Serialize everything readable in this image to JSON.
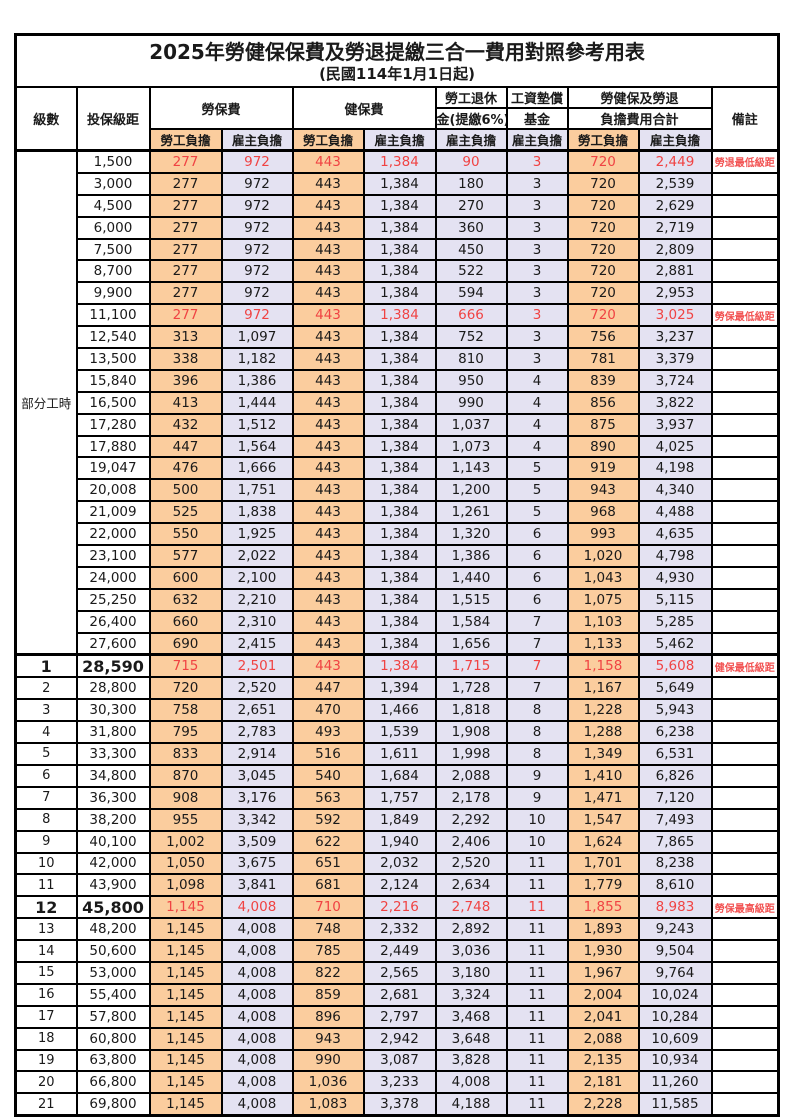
{
  "title": {
    "main": "2025年勞健保保費及勞退提繳三合一費用對照參考用表",
    "sub": "(民國114年1月1日起)"
  },
  "colors": {
    "employee_bg": "#fbcd9e",
    "employer_bg": "#e4e2f2",
    "highlight_red": "#f04343",
    "border": "#000000"
  },
  "header": {
    "level": "級數",
    "bracket": "投保級距",
    "labor": "勞保費",
    "health": "健保費",
    "pension_line1": "勞工退休",
    "pension_line2": "金(提繳6%)",
    "fund_line1": "工資墊償",
    "fund_line2": "基金",
    "total_line1": "勞健保及勞退",
    "total_line2": "負擔費用合計",
    "remark": "備註",
    "employee": "勞工負擔",
    "employer": "雇主負擔"
  },
  "table": {
    "part_time_label": "部分工時",
    "part_time_row_count": 23,
    "rows": [
      {
        "cells": [
          "",
          "1,500",
          "277",
          "972",
          "443",
          "1,384",
          "90",
          "3",
          "720",
          "2,449",
          "勞退最低級距"
        ],
        "red": true
      },
      {
        "cells": [
          "",
          "3,000",
          "277",
          "972",
          "443",
          "1,384",
          "180",
          "3",
          "720",
          "2,539",
          ""
        ]
      },
      {
        "cells": [
          "",
          "4,500",
          "277",
          "972",
          "443",
          "1,384",
          "270",
          "3",
          "720",
          "2,629",
          ""
        ]
      },
      {
        "cells": [
          "",
          "6,000",
          "277",
          "972",
          "443",
          "1,384",
          "360",
          "3",
          "720",
          "2,719",
          ""
        ]
      },
      {
        "cells": [
          "",
          "7,500",
          "277",
          "972",
          "443",
          "1,384",
          "450",
          "3",
          "720",
          "2,809",
          ""
        ]
      },
      {
        "cells": [
          "",
          "8,700",
          "277",
          "972",
          "443",
          "1,384",
          "522",
          "3",
          "720",
          "2,881",
          ""
        ]
      },
      {
        "cells": [
          "",
          "9,900",
          "277",
          "972",
          "443",
          "1,384",
          "594",
          "3",
          "720",
          "2,953",
          ""
        ]
      },
      {
        "cells": [
          "",
          "11,100",
          "277",
          "972",
          "443",
          "1,384",
          "666",
          "3",
          "720",
          "3,025",
          "勞保最低級距"
        ],
        "red": true
      },
      {
        "cells": [
          "",
          "12,540",
          "313",
          "1,097",
          "443",
          "1,384",
          "752",
          "3",
          "756",
          "3,237",
          ""
        ]
      },
      {
        "cells": [
          "",
          "13,500",
          "338",
          "1,182",
          "443",
          "1,384",
          "810",
          "3",
          "781",
          "3,379",
          ""
        ]
      },
      {
        "cells": [
          "",
          "15,840",
          "396",
          "1,386",
          "443",
          "1,384",
          "950",
          "4",
          "839",
          "3,724",
          ""
        ]
      },
      {
        "cells": [
          "",
          "16,500",
          "413",
          "1,444",
          "443",
          "1,384",
          "990",
          "4",
          "856",
          "3,822",
          ""
        ]
      },
      {
        "cells": [
          "",
          "17,280",
          "432",
          "1,512",
          "443",
          "1,384",
          "1,037",
          "4",
          "875",
          "3,937",
          ""
        ]
      },
      {
        "cells": [
          "",
          "17,880",
          "447",
          "1,564",
          "443",
          "1,384",
          "1,073",
          "4",
          "890",
          "4,025",
          ""
        ]
      },
      {
        "cells": [
          "",
          "19,047",
          "476",
          "1,666",
          "443",
          "1,384",
          "1,143",
          "5",
          "919",
          "4,198",
          ""
        ]
      },
      {
        "cells": [
          "",
          "20,008",
          "500",
          "1,751",
          "443",
          "1,384",
          "1,200",
          "5",
          "943",
          "4,340",
          ""
        ]
      },
      {
        "cells": [
          "",
          "21,009",
          "525",
          "1,838",
          "443",
          "1,384",
          "1,261",
          "5",
          "968",
          "4,488",
          ""
        ]
      },
      {
        "cells": [
          "",
          "22,000",
          "550",
          "1,925",
          "443",
          "1,384",
          "1,320",
          "6",
          "993",
          "4,635",
          ""
        ]
      },
      {
        "cells": [
          "",
          "23,100",
          "577",
          "2,022",
          "443",
          "1,384",
          "1,386",
          "6",
          "1,020",
          "4,798",
          ""
        ]
      },
      {
        "cells": [
          "",
          "24,000",
          "600",
          "2,100",
          "443",
          "1,384",
          "1,440",
          "6",
          "1,043",
          "4,930",
          ""
        ]
      },
      {
        "cells": [
          "",
          "25,250",
          "632",
          "2,210",
          "443",
          "1,384",
          "1,515",
          "6",
          "1,075",
          "5,115",
          ""
        ]
      },
      {
        "cells": [
          "",
          "26,400",
          "660",
          "2,310",
          "443",
          "1,384",
          "1,584",
          "7",
          "1,103",
          "5,285",
          ""
        ]
      },
      {
        "cells": [
          "",
          "27,600",
          "690",
          "2,415",
          "443",
          "1,384",
          "1,656",
          "7",
          "1,133",
          "5,462",
          ""
        ]
      },
      {
        "cells": [
          "1",
          "28,590",
          "715",
          "2,501",
          "443",
          "1,384",
          "1,715",
          "7",
          "1,158",
          "5,608",
          "健保最低級距"
        ],
        "red": true,
        "bold": true
      },
      {
        "cells": [
          "2",
          "28,800",
          "720",
          "2,520",
          "447",
          "1,394",
          "1,728",
          "7",
          "1,167",
          "5,649",
          ""
        ]
      },
      {
        "cells": [
          "3",
          "30,300",
          "758",
          "2,651",
          "470",
          "1,466",
          "1,818",
          "8",
          "1,228",
          "5,943",
          ""
        ]
      },
      {
        "cells": [
          "4",
          "31,800",
          "795",
          "2,783",
          "493",
          "1,539",
          "1,908",
          "8",
          "1,288",
          "6,238",
          ""
        ]
      },
      {
        "cells": [
          "5",
          "33,300",
          "833",
          "2,914",
          "516",
          "1,611",
          "1,998",
          "8",
          "1,349",
          "6,531",
          ""
        ]
      },
      {
        "cells": [
          "6",
          "34,800",
          "870",
          "3,045",
          "540",
          "1,684",
          "2,088",
          "9",
          "1,410",
          "6,826",
          ""
        ]
      },
      {
        "cells": [
          "7",
          "36,300",
          "908",
          "3,176",
          "563",
          "1,757",
          "2,178",
          "9",
          "1,471",
          "7,120",
          ""
        ]
      },
      {
        "cells": [
          "8",
          "38,200",
          "955",
          "3,342",
          "592",
          "1,849",
          "2,292",
          "10",
          "1,547",
          "7,493",
          ""
        ]
      },
      {
        "cells": [
          "9",
          "40,100",
          "1,002",
          "3,509",
          "622",
          "1,940",
          "2,406",
          "10",
          "1,624",
          "7,865",
          ""
        ]
      },
      {
        "cells": [
          "10",
          "42,000",
          "1,050",
          "3,675",
          "651",
          "2,032",
          "2,520",
          "11",
          "1,701",
          "8,238",
          ""
        ]
      },
      {
        "cells": [
          "11",
          "43,900",
          "1,098",
          "3,841",
          "681",
          "2,124",
          "2,634",
          "11",
          "1,779",
          "8,610",
          ""
        ]
      },
      {
        "cells": [
          "12",
          "45,800",
          "1,145",
          "4,008",
          "710",
          "2,216",
          "2,748",
          "11",
          "1,855",
          "8,983",
          "勞保最高級距"
        ],
        "red": true,
        "bold": true
      },
      {
        "cells": [
          "13",
          "48,200",
          "1,145",
          "4,008",
          "748",
          "2,332",
          "2,892",
          "11",
          "1,893",
          "9,243",
          ""
        ]
      },
      {
        "cells": [
          "14",
          "50,600",
          "1,145",
          "4,008",
          "785",
          "2,449",
          "3,036",
          "11",
          "1,930",
          "9,504",
          ""
        ]
      },
      {
        "cells": [
          "15",
          "53,000",
          "1,145",
          "4,008",
          "822",
          "2,565",
          "3,180",
          "11",
          "1,967",
          "9,764",
          ""
        ]
      },
      {
        "cells": [
          "16",
          "55,400",
          "1,145",
          "4,008",
          "859",
          "2,681",
          "3,324",
          "11",
          "2,004",
          "10,024",
          ""
        ]
      },
      {
        "cells": [
          "17",
          "57,800",
          "1,145",
          "4,008",
          "896",
          "2,797",
          "3,468",
          "11",
          "2,041",
          "10,284",
          ""
        ]
      },
      {
        "cells": [
          "18",
          "60,800",
          "1,145",
          "4,008",
          "943",
          "2,942",
          "3,648",
          "11",
          "2,088",
          "10,609",
          ""
        ]
      },
      {
        "cells": [
          "19",
          "63,800",
          "1,145",
          "4,008",
          "990",
          "3,087",
          "3,828",
          "11",
          "2,135",
          "10,934",
          ""
        ]
      },
      {
        "cells": [
          "20",
          "66,800",
          "1,145",
          "4,008",
          "1,036",
          "3,233",
          "4,008",
          "11",
          "2,181",
          "11,260",
          ""
        ]
      },
      {
        "cells": [
          "21",
          "69,800",
          "1,145",
          "4,008",
          "1,083",
          "3,378",
          "4,188",
          "11",
          "2,228",
          "11,585",
          ""
        ]
      }
    ]
  }
}
